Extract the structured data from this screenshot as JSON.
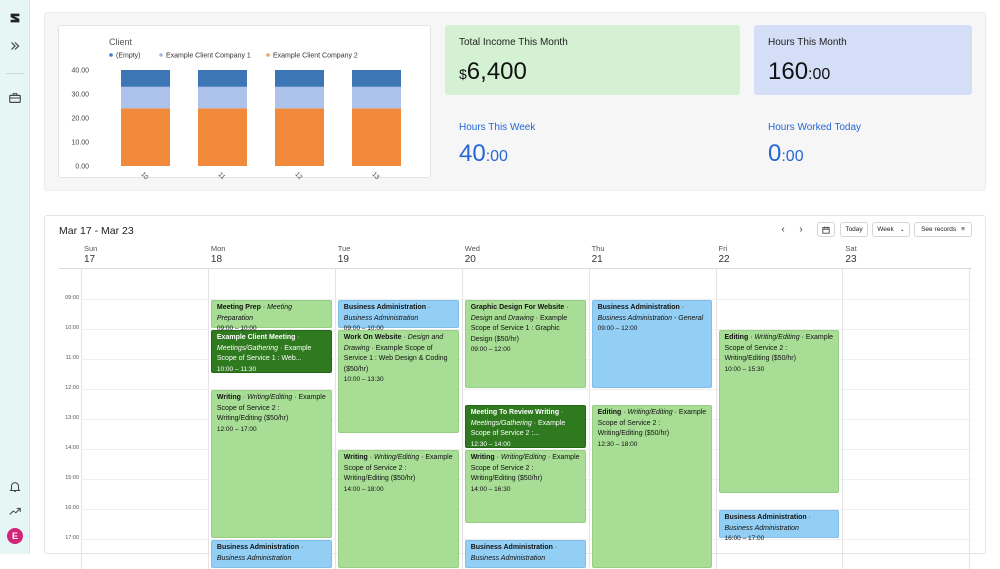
{
  "sidebar": {
    "icons": [
      "logo-icon",
      "expand-icon",
      "briefcase-icon",
      "bell-icon",
      "chart-line-icon"
    ],
    "avatar_letter": "E"
  },
  "stats": {
    "income": {
      "label": "Total Income This Month",
      "currency": "$",
      "value": "6,400",
      "color": "#d4f2d3"
    },
    "hours_month": {
      "label": "Hours This Month",
      "hours": "160",
      "minutes": ":00",
      "color": "#d4def7"
    },
    "hours_week": {
      "label": "Hours This Week",
      "hours": "40",
      "minutes": ":00",
      "color": "#2567d6"
    },
    "hours_today": {
      "label": "Hours Worked Today",
      "hours": "0",
      "minutes": ":00",
      "color": "#2567d6"
    }
  },
  "chart_data": {
    "type": "bar",
    "title": "Client",
    "legend": [
      "(Empty)",
      "Example Client Company 1",
      "Example Client Company 2"
    ],
    "legend_colors": [
      "#3d7fcf",
      "#a8b8d8",
      "#f5a25e"
    ],
    "categories": [
      "10",
      "11",
      "12",
      "13"
    ],
    "series": [
      {
        "name": "Example Client Company 2",
        "color": "#f0893a",
        "values": [
          24,
          24,
          24,
          24
        ]
      },
      {
        "name": "Example Client Company 1",
        "color": "#aec3ec",
        "values": [
          9,
          9,
          9,
          9
        ]
      },
      {
        "name": "(Empty)",
        "color": "#3c76b5",
        "values": [
          7,
          7,
          7,
          7
        ]
      }
    ],
    "yticks": [
      "0.00",
      "10.00",
      "20.00",
      "30.00",
      "40.00"
    ],
    "ylim": [
      0,
      40
    ],
    "stacked": true
  },
  "calendar": {
    "range": "Mar 17 - Mar 23",
    "today_label": "Today",
    "view_label": "Week",
    "records_label": "See records",
    "days": [
      {
        "name": "Sun",
        "num": "17"
      },
      {
        "name": "Mon",
        "num": "18"
      },
      {
        "name": "Tue",
        "num": "19"
      },
      {
        "name": "Wed",
        "num": "20"
      },
      {
        "name": "Thu",
        "num": "21"
      },
      {
        "name": "Fri",
        "num": "22"
      },
      {
        "name": "Sat",
        "num": "23"
      }
    ],
    "times": [
      "09:00",
      "10:00",
      "11:00",
      "12:00",
      "13:00",
      "14:00",
      "15:00",
      "16:00",
      "17:00"
    ],
    "events": [
      {
        "day": 1,
        "start": 9,
        "end": 10,
        "style": "light",
        "title": "Meeting Prep",
        "category": "Meeting Preparation",
        "scope": "",
        "time": "09:00 – 10:00"
      },
      {
        "day": 1,
        "start": 10,
        "end": 11.5,
        "style": "dark",
        "title": "Example Client Meeting",
        "category": "Meetings/Gathering",
        "scope": "Example Scope of Service 1 : Web...",
        "time": "10:00 – 11:30"
      },
      {
        "day": 1,
        "start": 12,
        "end": 17,
        "style": "light",
        "title": "Writing",
        "category": "Writing/Editing",
        "scope": "Example Scope of Service 2 : Writing/Editing ($50/hr)",
        "time": "12:00 – 17:00"
      },
      {
        "day": 1,
        "start": 17,
        "end": 18,
        "style": "blue",
        "title": "Business Administration",
        "category": "Business Administration",
        "scope": "",
        "time": ""
      },
      {
        "day": 2,
        "start": 9,
        "end": 10,
        "style": "blue",
        "title": "Business Administration",
        "category": "Business Administration",
        "scope": "",
        "time": "09:00 – 10:00"
      },
      {
        "day": 2,
        "start": 10,
        "end": 13.5,
        "style": "light",
        "title": "Work On Website",
        "category": "Design and Drawing",
        "scope": "Example Scope of Service 1 : Web Design & Coding ($50/hr)",
        "time": "10:00 – 13:30"
      },
      {
        "day": 2,
        "start": 14,
        "end": 18,
        "style": "light",
        "title": "Writing",
        "category": "Writing/Editing",
        "scope": "Example Scope of Service 2 : Writing/Editing ($50/hr)",
        "time": "14:00 – 18:00"
      },
      {
        "day": 3,
        "start": 9,
        "end": 12,
        "style": "light",
        "title": "Graphic Design For Website",
        "category": "Design and Drawing",
        "scope": "Example Scope of Service 1 : Graphic Design ($50/hr)",
        "time": "09:00 – 12:00"
      },
      {
        "day": 3,
        "start": 12.5,
        "end": 14,
        "style": "dark",
        "title": "Meeting To Review Writing",
        "category": "Meetings/Gathering",
        "scope": "Example Scope of Service 2 :...",
        "time": "12:30 – 14:00"
      },
      {
        "day": 3,
        "start": 14,
        "end": 16.5,
        "style": "light",
        "title": "Writing",
        "category": "Writing/Editing",
        "scope": "Example Scope of Service 2 : Writing/Editing ($50/hr)",
        "time": "14:00 – 16:30"
      },
      {
        "day": 3,
        "start": 17,
        "end": 18,
        "style": "blue",
        "title": "Business Administration",
        "category": "Business Administration",
        "scope": "",
        "time": ""
      },
      {
        "day": 4,
        "start": 9,
        "end": 12,
        "style": "blue",
        "title": "Business Administration",
        "category": "Business Administration - General",
        "scope": "",
        "time": "09:00 – 12:00"
      },
      {
        "day": 4,
        "start": 12.5,
        "end": 18,
        "style": "light",
        "title": "Editing",
        "category": "Writing/Editing",
        "scope": "Example Scope of Service 2 : Writing/Editing ($50/hr)",
        "time": "12:30 – 18:00"
      },
      {
        "day": 5,
        "start": 10,
        "end": 15.5,
        "style": "light",
        "title": "Editing",
        "category": "Writing/Editing",
        "scope": "Example Scope of Service 2 : Writing/Editing ($50/hr)",
        "time": "10:00 – 15:30"
      },
      {
        "day": 5,
        "start": 16,
        "end": 17,
        "style": "blue",
        "title": "Business Administration",
        "category": "Business Administration",
        "scope": "",
        "time": "16:00 – 17:00"
      }
    ]
  }
}
